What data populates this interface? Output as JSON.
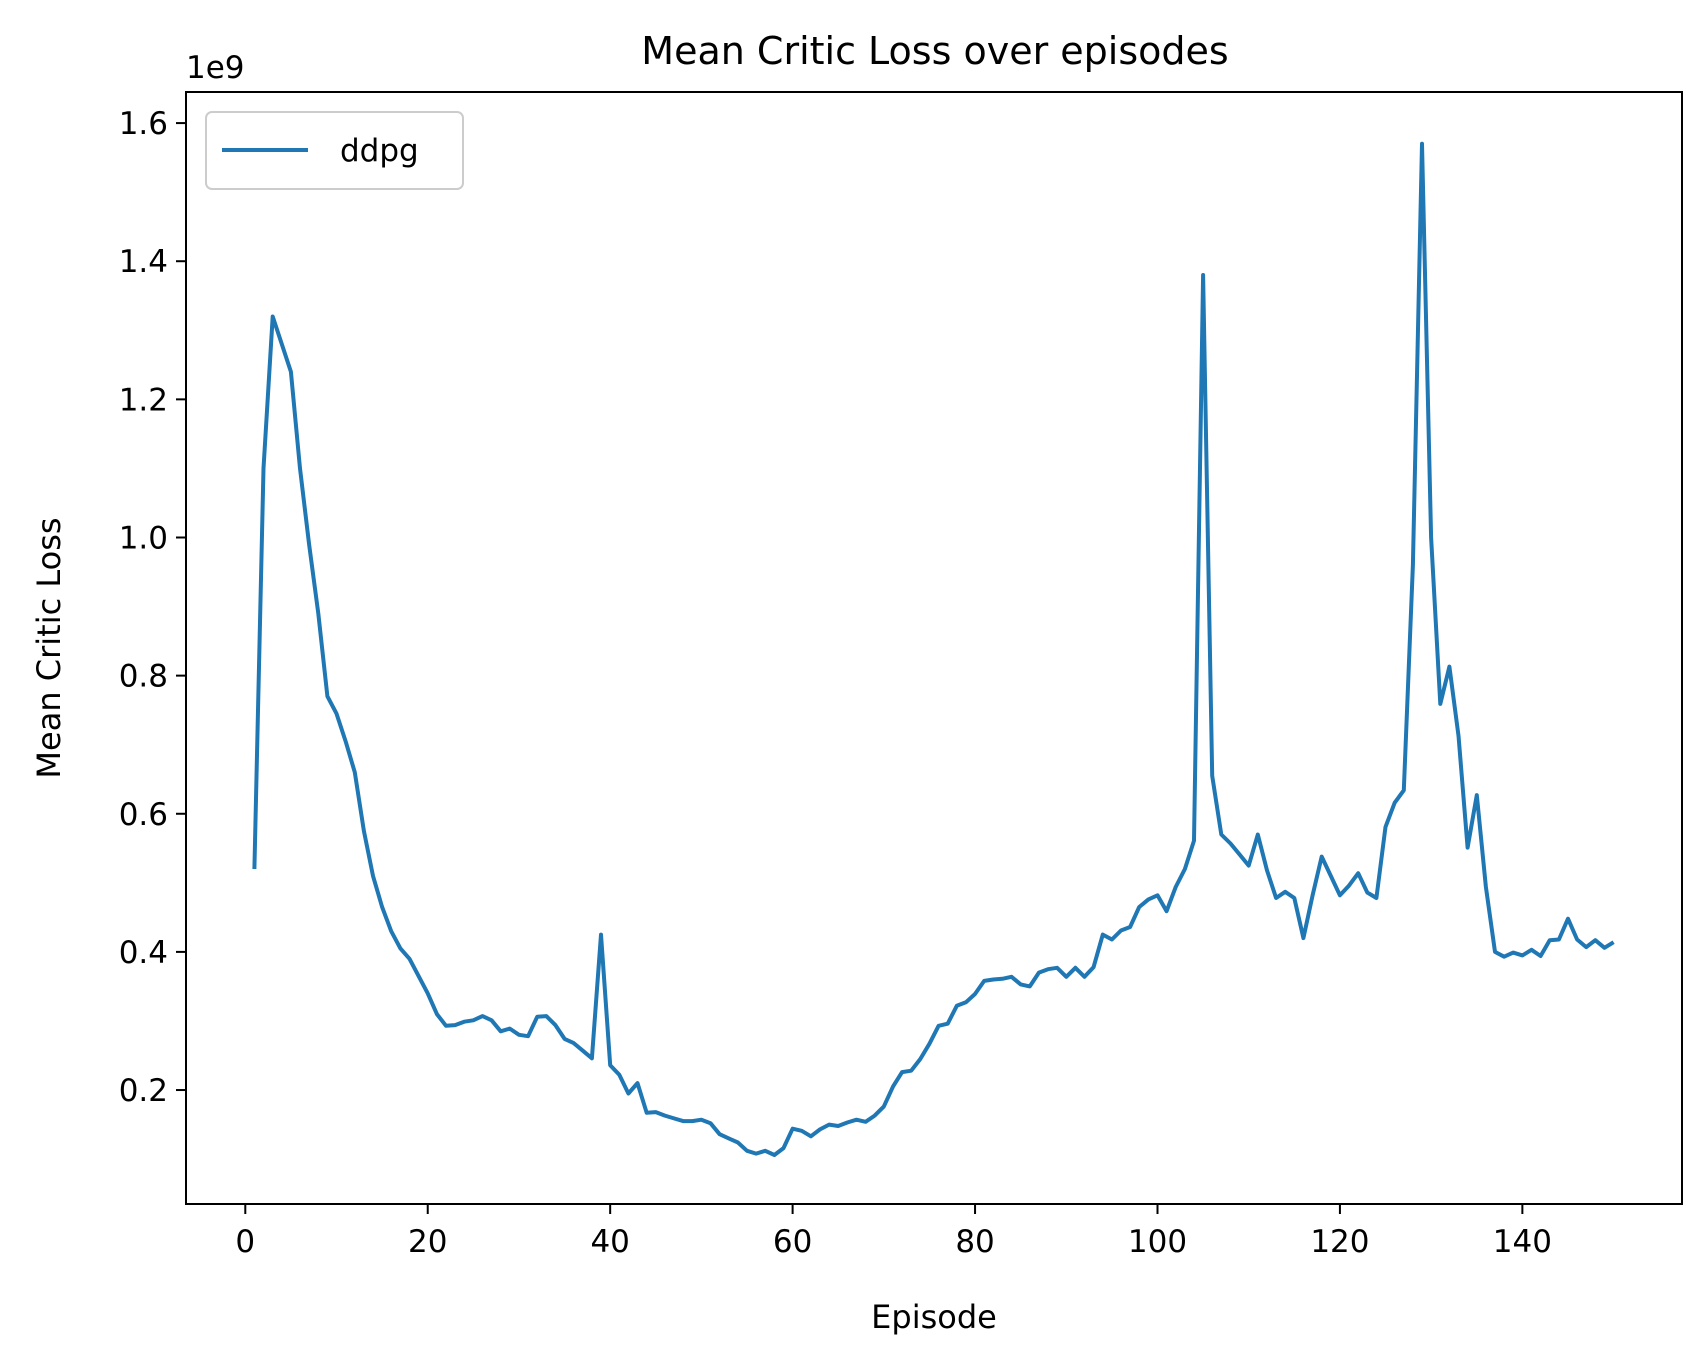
{
  "chart_data": {
    "type": "line",
    "title": "Mean Critic Loss over episodes",
    "xlabel": "Episode",
    "ylabel": "Mean Critic Loss",
    "y_offset_label": "1e9",
    "xlim": [
      -6.5,
      157.5
    ],
    "ylim": [
      0.035,
      1.645
    ],
    "x_ticks": [
      0,
      20,
      40,
      60,
      80,
      100,
      120,
      140
    ],
    "y_ticks": [
      0.2,
      0.4,
      0.6,
      0.8,
      1.0,
      1.2,
      1.4,
      1.6
    ],
    "x_tick_labels": [
      "0",
      "20",
      "40",
      "60",
      "80",
      "100",
      "120",
      "140"
    ],
    "y_tick_labels": [
      "0.2",
      "0.4",
      "0.6",
      "0.8",
      "1.0",
      "1.2",
      "1.4",
      "1.6"
    ],
    "grid": false,
    "legend_position": "top-left",
    "series": [
      {
        "name": "ddpg",
        "color": "#1f77b4",
        "x": [
          1,
          2,
          3,
          4,
          5,
          6,
          7,
          8,
          9,
          10,
          11,
          12,
          13,
          14,
          15,
          16,
          17,
          18,
          19,
          20,
          21,
          22,
          23,
          24,
          25,
          26,
          27,
          28,
          29,
          30,
          31,
          32,
          33,
          34,
          35,
          36,
          37,
          38,
          39,
          40,
          41,
          42,
          43,
          44,
          45,
          46,
          47,
          48,
          49,
          50,
          51,
          52,
          53,
          54,
          55,
          56,
          57,
          58,
          59,
          60,
          61,
          62,
          63,
          64,
          65,
          66,
          67,
          68,
          69,
          70,
          71,
          72,
          73,
          74,
          75,
          76,
          77,
          78,
          79,
          80,
          81,
          82,
          83,
          84,
          85,
          86,
          87,
          88,
          89,
          90,
          91,
          92,
          93,
          94,
          95,
          96,
          97,
          98,
          99,
          100,
          101,
          102,
          103,
          104,
          105,
          106,
          107,
          108,
          109,
          110,
          111,
          112,
          113,
          114,
          115,
          116,
          117,
          118,
          119,
          120,
          121,
          122,
          123,
          124,
          125,
          126,
          127,
          128,
          129,
          130,
          131,
          132,
          133,
          134,
          135,
          136,
          137,
          138,
          139,
          140,
          141,
          142,
          143,
          144,
          145,
          146,
          147,
          148,
          149,
          150
        ],
        "values": [
          0.52,
          1.1,
          1.32,
          1.28,
          1.24,
          1.1,
          0.99,
          0.89,
          0.77,
          0.745,
          0.705,
          0.66,
          0.575,
          0.51,
          0.465,
          0.43,
          0.405,
          0.39,
          0.365,
          0.34,
          0.31,
          0.293,
          0.294,
          0.299,
          0.301,
          0.307,
          0.301,
          0.285,
          0.289,
          0.28,
          0.278,
          0.306,
          0.307,
          0.294,
          0.274,
          0.268,
          0.257,
          0.246,
          0.425,
          0.236,
          0.222,
          0.195,
          0.21,
          0.167,
          0.168,
          0.163,
          0.159,
          0.155,
          0.155,
          0.157,
          0.152,
          0.136,
          0.13,
          0.124,
          0.112,
          0.108,
          0.112,
          0.106,
          0.116,
          0.144,
          0.141,
          0.133,
          0.143,
          0.15,
          0.148,
          0.153,
          0.157,
          0.154,
          0.163,
          0.176,
          0.205,
          0.226,
          0.228,
          0.245,
          0.267,
          0.293,
          0.296,
          0.322,
          0.327,
          0.339,
          0.358,
          0.36,
          0.361,
          0.364,
          0.353,
          0.35,
          0.37,
          0.375,
          0.377,
          0.364,
          0.377,
          0.364,
          0.378,
          0.425,
          0.418,
          0.431,
          0.436,
          0.465,
          0.476,
          0.482,
          0.459,
          0.494,
          0.52,
          0.561,
          1.38,
          0.655,
          0.57,
          0.557,
          0.541,
          0.525,
          0.57,
          0.518,
          0.478,
          0.487,
          0.478,
          0.42,
          0.482,
          0.538,
          0.51,
          0.482,
          0.496,
          0.514,
          0.486,
          0.478,
          0.581,
          0.616,
          0.634,
          0.96,
          1.57,
          1.0,
          0.759,
          0.813,
          0.713,
          0.551,
          0.627,
          0.494,
          0.4,
          0.393,
          0.399,
          0.395,
          0.403,
          0.394,
          0.417,
          0.418,
          0.448,
          0.418,
          0.407,
          0.417,
          0.406,
          0.414
        ]
      }
    ]
  }
}
